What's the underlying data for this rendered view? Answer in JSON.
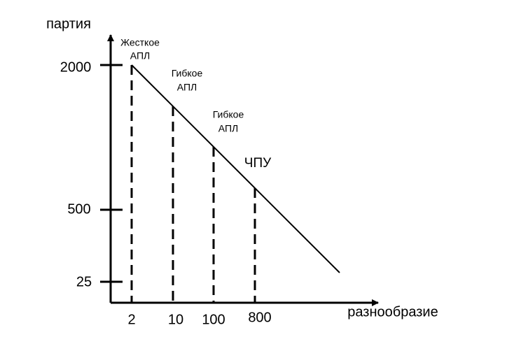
{
  "axes": {
    "y_label": "партия",
    "x_label": "разнообразие",
    "y_ticks": [
      "2000",
      "500",
      "25"
    ],
    "x_ticks": [
      "2",
      "10",
      "100",
      "800"
    ]
  },
  "regions": [
    {
      "line1": "Жесткое",
      "line2": "АПЛ"
    },
    {
      "line1": "Гибкое",
      "line2": "АПЛ"
    },
    {
      "line1": "Гибкое",
      "line2": "АПЛ"
    },
    {
      "line1": "ЧПУ"
    }
  ]
}
